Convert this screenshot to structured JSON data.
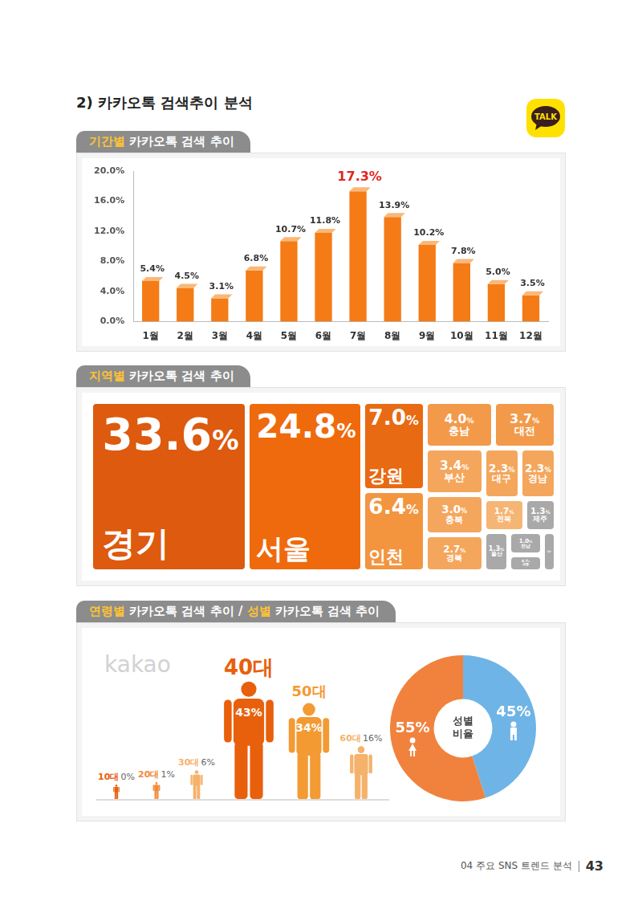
{
  "page": {
    "section_title": "2) 카카오톡 검색추이 분석",
    "logo_text": "TALK",
    "panel_titles": [
      "기간별 카카오톡 검색 추이",
      "지역별 카카오톡 검색 추이",
      "연령별 카카오톡 검색 추이 / 성별 카카오톡 검색 추이"
    ],
    "watermark": "kakao",
    "footer_text": "04 주요 SNS 트렌드 분석",
    "page_number": "43"
  },
  "chart_data": [
    {
      "type": "bar",
      "categories": [
        "1월",
        "2월",
        "3월",
        "4월",
        "5월",
        "6월",
        "7월",
        "8월",
        "9월",
        "10월",
        "11월",
        "12월"
      ],
      "values": [
        5.4,
        4.5,
        3.1,
        6.8,
        10.7,
        11.8,
        17.3,
        13.9,
        10.2,
        7.8,
        5.0,
        3.5
      ],
      "value_labels": [
        "5.4%",
        "4.5%",
        "3.1%",
        "6.8%",
        "10.7%",
        "11.8%",
        "17.3%",
        "13.9%",
        "10.2%",
        "7.8%",
        "5.0%",
        "3.5%"
      ],
      "color": "#f47b16",
      "ylim": [
        0,
        20
      ],
      "yticks": [
        {
          "value": 0,
          "label": "0.0%"
        },
        {
          "value": 4,
          "label": "4.0%"
        },
        {
          "value": 8,
          "label": "8.0%"
        },
        {
          "value": 12,
          "label": "12.0%"
        },
        {
          "value": 16,
          "label": "16.0%"
        },
        {
          "value": 20,
          "label": "20.0%"
        }
      ],
      "grid": false,
      "data_labels": true
    },
    {
      "type": "treemap",
      "categories": [
        "경기",
        "서울",
        "강원",
        "인천",
        "충남",
        "대전",
        "부산",
        "충북",
        "경북",
        "대구",
        "경남",
        "전북",
        "제주",
        "울산",
        "전남",
        "세종",
        "광주"
      ],
      "values": [
        33.6,
        24.8,
        7.0,
        6.4,
        4.0,
        3.7,
        3.4,
        3.0,
        2.7,
        2.3,
        2.3,
        1.7,
        1.3,
        1.3,
        1.0,
        0.7,
        0.7
      ],
      "value_labels": [
        "33.6%",
        "24.8%",
        "7.0%",
        "6.4%",
        "4.0%",
        "3.7%",
        "3.4%",
        "3.0%",
        "2.7%",
        "2.3%",
        "2.3%",
        "1.7%",
        "1.3%",
        "1.3%",
        "1.0%",
        "0.7%",
        "0.7%"
      ],
      "colors": [
        "#dd5a0e",
        "#ef6a0c",
        "#e86a12",
        "#f3953f",
        "#f29a4a",
        "#f29a4a",
        "#f4a65c",
        "#f4a65c",
        "#f4a65c",
        "#f4a65c",
        "#f4a65c",
        "#f5b574",
        "#a9a9a9",
        "#a9a9a9",
        "#a9a9a9",
        "#a9a9a9",
        "#a9a9a9"
      ],
      "data_labels": true
    },
    {
      "type": "pictograph",
      "categories": [
        "10대",
        "20대",
        "30대",
        "40대",
        "50대",
        "60대"
      ],
      "values": [
        0,
        1,
        6,
        43,
        34,
        16
      ],
      "value_labels": [
        "0%",
        "1%",
        "6%",
        "43%",
        "34%",
        "16%"
      ],
      "colors": [
        "#e8600c",
        "#f08a3a",
        "#f5b26b",
        "#e8600c",
        "#f39a33",
        "#f5b26b"
      ],
      "data_labels": true
    },
    {
      "type": "doughnut",
      "values": [
        45,
        55
      ],
      "value_labels": [
        "45%",
        "55%"
      ],
      "colors": [
        "#6fb4e6",
        "#f0823e"
      ],
      "center_text": "성별 비율",
      "data_labels": true
    }
  ]
}
